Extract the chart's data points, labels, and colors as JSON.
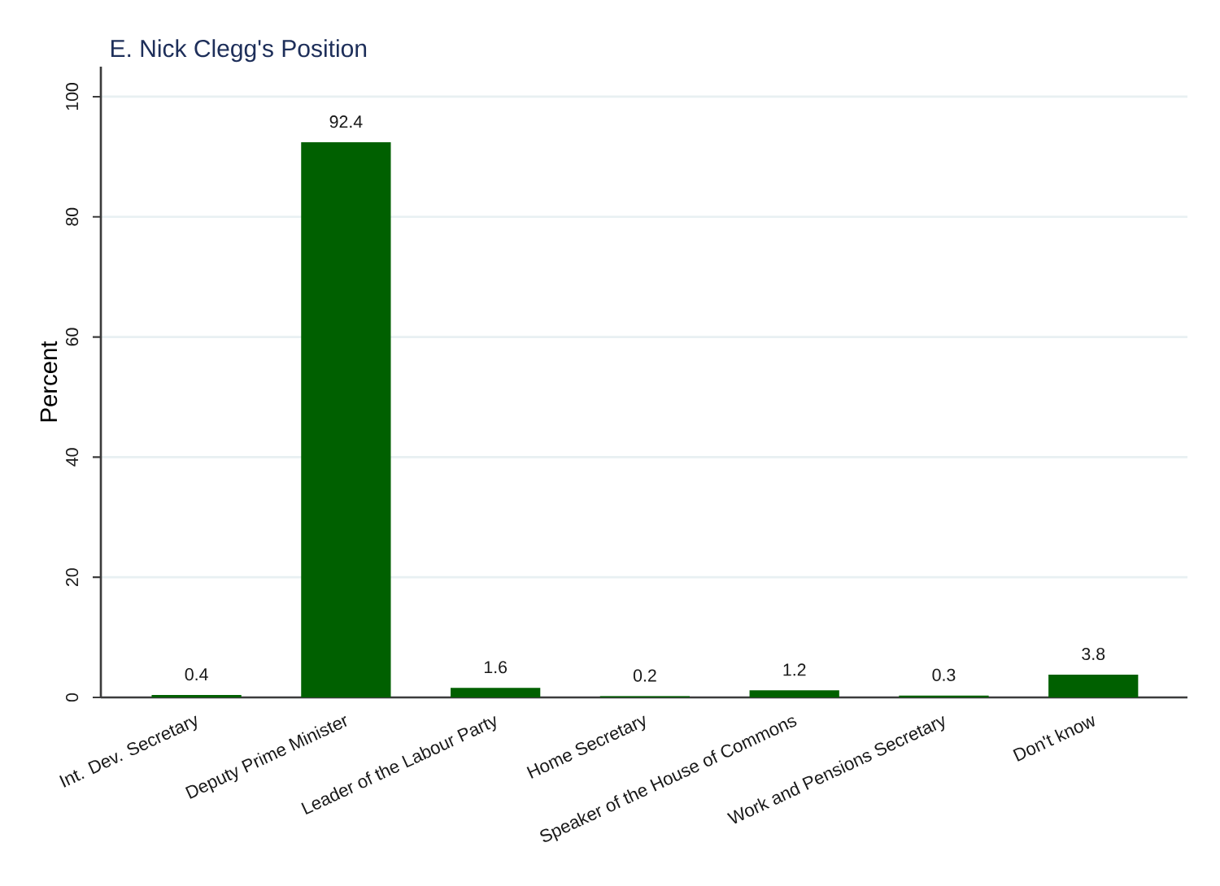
{
  "chart_data": {
    "type": "bar",
    "title": "E. Nick Clegg's Position",
    "ylabel": "Percent",
    "categories": [
      "Int. Dev. Secretary",
      "Deputy Prime Minister",
      "Leader of the Labour Party",
      "Home Secretary",
      "Speaker of the House of Commons",
      "Work and Pensions Secretary",
      "Don't know"
    ],
    "values": [
      0.4,
      92.4,
      1.6,
      0.2,
      1.2,
      0.3,
      3.8
    ],
    "color": "#006000",
    "ylim": [
      0,
      105
    ],
    "yticks": [
      0,
      20,
      40,
      60,
      80,
      100
    ],
    "grid": "y",
    "data_labels": true
  }
}
